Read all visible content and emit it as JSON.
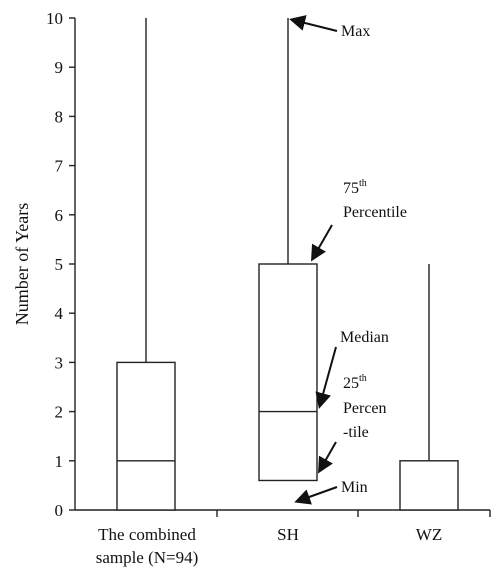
{
  "chart_data": {
    "type": "boxplot",
    "ylabel": "Number of Years",
    "ylim": [
      0,
      10
    ],
    "yticks": [
      "0",
      "1",
      "2",
      "3",
      "4",
      "5",
      "6",
      "7",
      "8",
      "9",
      "10"
    ],
    "categories": [
      {
        "lines": [
          "The combined",
          "sample (N=94)"
        ]
      },
      {
        "lines": [
          "SH"
        ]
      },
      {
        "lines": [
          "WZ"
        ]
      }
    ],
    "boxes": [
      {
        "min": 0,
        "q1": 0,
        "median": 1,
        "q3": 3,
        "max": 10
      },
      {
        "min": 0.6,
        "q1": 0.6,
        "median": 2,
        "q3": 5,
        "max": 10
      },
      {
        "min": 0,
        "q1": 0,
        "median": 0,
        "q3": 1,
        "max": 5
      }
    ],
    "grid": false,
    "annotations": {
      "max": "Max",
      "p75_num": "75",
      "p75_sup": "th",
      "p75_word": "Percentile",
      "median": "Median",
      "p25_num": "25",
      "p25_sup": "th",
      "p25_line1": "Percen",
      "p25_line2": "-tile",
      "min": "Min"
    }
  }
}
